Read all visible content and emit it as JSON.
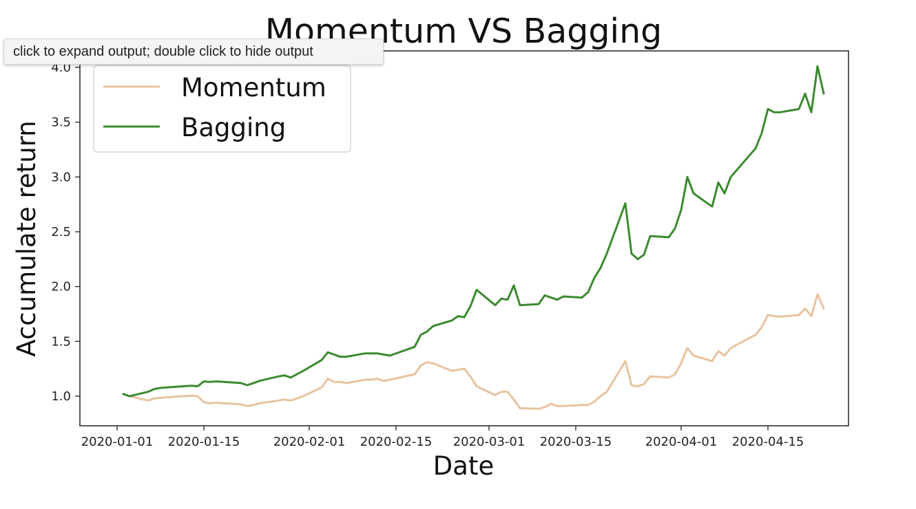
{
  "tooltip": {
    "text": "click to expand output; double click to hide output"
  },
  "chart_data": {
    "type": "line",
    "title": "Momentum VS Bagging",
    "xlabel": "Date",
    "ylabel": "Accumulate return",
    "x_tick_labels": [
      "2020-01-01",
      "2020-01-15",
      "2020-02-01",
      "2020-02-15",
      "2020-03-01",
      "2020-03-15",
      "2020-04-01",
      "2020-04-15"
    ],
    "y_tick_labels": [
      "1.0",
      "1.5",
      "2.0",
      "2.5",
      "3.0",
      "3.5",
      "4.0"
    ],
    "xlim": [
      "2019-12-26",
      "2020-04-28"
    ],
    "ylim": [
      0.73,
      4.15
    ],
    "grid": false,
    "legend_position": "top-left",
    "series": [
      {
        "name": "Momentum",
        "color": "#e8c39e",
        "points": [
          [
            "2020-01-02",
            1.02
          ],
          [
            "2020-01-03",
            1.0
          ],
          [
            "2020-01-06",
            0.96
          ],
          [
            "2020-01-07",
            0.98
          ],
          [
            "2020-01-08",
            0.985
          ],
          [
            "2020-01-09",
            0.99
          ],
          [
            "2020-01-13",
            1.005
          ],
          [
            "2020-01-14",
            1.0
          ],
          [
            "2020-01-15",
            0.945
          ],
          [
            "2020-01-16",
            0.935
          ],
          [
            "2020-01-17",
            0.94
          ],
          [
            "2020-01-21",
            0.925
          ],
          [
            "2020-01-22",
            0.91
          ],
          [
            "2020-01-23",
            0.92
          ],
          [
            "2020-01-24",
            0.935
          ],
          [
            "2020-01-27",
            0.96
          ],
          [
            "2020-01-28",
            0.97
          ],
          [
            "2020-01-29",
            0.96
          ],
          [
            "2020-01-30",
            0.98
          ],
          [
            "2020-01-31",
            1.0
          ],
          [
            "2020-02-03",
            1.08
          ],
          [
            "2020-02-04",
            1.16
          ],
          [
            "2020-02-05",
            1.13
          ],
          [
            "2020-02-06",
            1.13
          ],
          [
            "2020-02-07",
            1.12
          ],
          [
            "2020-02-10",
            1.15
          ],
          [
            "2020-02-11",
            1.15
          ],
          [
            "2020-02-12",
            1.16
          ],
          [
            "2020-02-13",
            1.14
          ],
          [
            "2020-02-14",
            1.15
          ],
          [
            "2020-02-18",
            1.2
          ],
          [
            "2020-02-19",
            1.28
          ],
          [
            "2020-02-20",
            1.31
          ],
          [
            "2020-02-21",
            1.3
          ],
          [
            "2020-02-24",
            1.23
          ],
          [
            "2020-02-25",
            1.24
          ],
          [
            "2020-02-26",
            1.25
          ],
          [
            "2020-02-27",
            1.18
          ],
          [
            "2020-02-28",
            1.09
          ],
          [
            "2020-03-02",
            1.01
          ],
          [
            "2020-03-03",
            1.04
          ],
          [
            "2020-03-04",
            1.04
          ],
          [
            "2020-03-05",
            0.97
          ],
          [
            "2020-03-06",
            0.89
          ],
          [
            "2020-03-09",
            0.885
          ],
          [
            "2020-03-10",
            0.9
          ],
          [
            "2020-03-11",
            0.93
          ],
          [
            "2020-03-12",
            0.91
          ],
          [
            "2020-03-13",
            0.91
          ],
          [
            "2020-03-16",
            0.92
          ],
          [
            "2020-03-17",
            0.92
          ],
          [
            "2020-03-18",
            0.95
          ],
          [
            "2020-03-19",
            1.0
          ],
          [
            "2020-03-20",
            1.04
          ],
          [
            "2020-03-23",
            1.32
          ],
          [
            "2020-03-24",
            1.1
          ],
          [
            "2020-03-25",
            1.09
          ],
          [
            "2020-03-26",
            1.11
          ],
          [
            "2020-03-27",
            1.18
          ],
          [
            "2020-03-30",
            1.17
          ],
          [
            "2020-03-31",
            1.2
          ],
          [
            "2020-04-01",
            1.3
          ],
          [
            "2020-04-02",
            1.44
          ],
          [
            "2020-04-03",
            1.37
          ],
          [
            "2020-04-06",
            1.32
          ],
          [
            "2020-04-07",
            1.41
          ],
          [
            "2020-04-08",
            1.37
          ],
          [
            "2020-04-09",
            1.44
          ],
          [
            "2020-04-13",
            1.56
          ],
          [
            "2020-04-14",
            1.63
          ],
          [
            "2020-04-15",
            1.74
          ],
          [
            "2020-04-16",
            1.73
          ],
          [
            "2020-04-17",
            1.725
          ],
          [
            "2020-04-20",
            1.74
          ],
          [
            "2020-04-21",
            1.8
          ],
          [
            "2020-04-22",
            1.73
          ],
          [
            "2020-04-23",
            1.93
          ],
          [
            "2020-04-24",
            1.8
          ]
        ]
      },
      {
        "name": "Bagging",
        "color": "#3a8a2e",
        "points": [
          [
            "2020-01-02",
            1.02
          ],
          [
            "2020-01-03",
            1.0
          ],
          [
            "2020-01-06",
            1.04
          ],
          [
            "2020-01-07",
            1.065
          ],
          [
            "2020-01-08",
            1.075
          ],
          [
            "2020-01-09",
            1.08
          ],
          [
            "2020-01-13",
            1.095
          ],
          [
            "2020-01-14",
            1.09
          ],
          [
            "2020-01-15",
            1.135
          ],
          [
            "2020-01-16",
            1.13
          ],
          [
            "2020-01-17",
            1.135
          ],
          [
            "2020-01-21",
            1.12
          ],
          [
            "2020-01-22",
            1.1
          ],
          [
            "2020-01-23",
            1.12
          ],
          [
            "2020-01-24",
            1.14
          ],
          [
            "2020-01-27",
            1.18
          ],
          [
            "2020-01-28",
            1.19
          ],
          [
            "2020-01-29",
            1.17
          ],
          [
            "2020-01-30",
            1.2
          ],
          [
            "2020-01-31",
            1.23
          ],
          [
            "2020-02-03",
            1.33
          ],
          [
            "2020-02-04",
            1.4
          ],
          [
            "2020-02-05",
            1.38
          ],
          [
            "2020-02-06",
            1.36
          ],
          [
            "2020-02-07",
            1.36
          ],
          [
            "2020-02-10",
            1.39
          ],
          [
            "2020-02-11",
            1.39
          ],
          [
            "2020-02-12",
            1.39
          ],
          [
            "2020-02-13",
            1.38
          ],
          [
            "2020-02-14",
            1.37
          ],
          [
            "2020-02-18",
            1.45
          ],
          [
            "2020-02-19",
            1.56
          ],
          [
            "2020-02-20",
            1.59
          ],
          [
            "2020-02-21",
            1.64
          ],
          [
            "2020-02-24",
            1.69
          ],
          [
            "2020-02-25",
            1.73
          ],
          [
            "2020-02-26",
            1.72
          ],
          [
            "2020-02-27",
            1.82
          ],
          [
            "2020-02-28",
            1.97
          ],
          [
            "2020-03-02",
            1.83
          ],
          [
            "2020-03-03",
            1.89
          ],
          [
            "2020-03-04",
            1.88
          ],
          [
            "2020-03-05",
            2.01
          ],
          [
            "2020-03-06",
            1.83
          ],
          [
            "2020-03-09",
            1.84
          ],
          [
            "2020-03-10",
            1.92
          ],
          [
            "2020-03-11",
            1.9
          ],
          [
            "2020-03-12",
            1.88
          ],
          [
            "2020-03-13",
            1.91
          ],
          [
            "2020-03-16",
            1.9
          ],
          [
            "2020-03-17",
            1.95
          ],
          [
            "2020-03-18",
            2.08
          ],
          [
            "2020-03-19",
            2.17
          ],
          [
            "2020-03-20",
            2.3
          ],
          [
            "2020-03-23",
            2.76
          ],
          [
            "2020-03-24",
            2.3
          ],
          [
            "2020-03-25",
            2.25
          ],
          [
            "2020-03-26",
            2.29
          ],
          [
            "2020-03-27",
            2.46
          ],
          [
            "2020-03-30",
            2.45
          ],
          [
            "2020-03-31",
            2.53
          ],
          [
            "2020-04-01",
            2.7
          ],
          [
            "2020-04-02",
            3.0
          ],
          [
            "2020-04-03",
            2.85
          ],
          [
            "2020-04-06",
            2.73
          ],
          [
            "2020-04-07",
            2.95
          ],
          [
            "2020-04-08",
            2.85
          ],
          [
            "2020-04-09",
            3.0
          ],
          [
            "2020-04-13",
            3.26
          ],
          [
            "2020-04-14",
            3.4
          ],
          [
            "2020-04-15",
            3.62
          ],
          [
            "2020-04-16",
            3.59
          ],
          [
            "2020-04-17",
            3.59
          ],
          [
            "2020-04-20",
            3.62
          ],
          [
            "2020-04-21",
            3.76
          ],
          [
            "2020-04-22",
            3.59
          ],
          [
            "2020-04-23",
            4.01
          ],
          [
            "2020-04-24",
            3.76
          ]
        ]
      }
    ]
  }
}
